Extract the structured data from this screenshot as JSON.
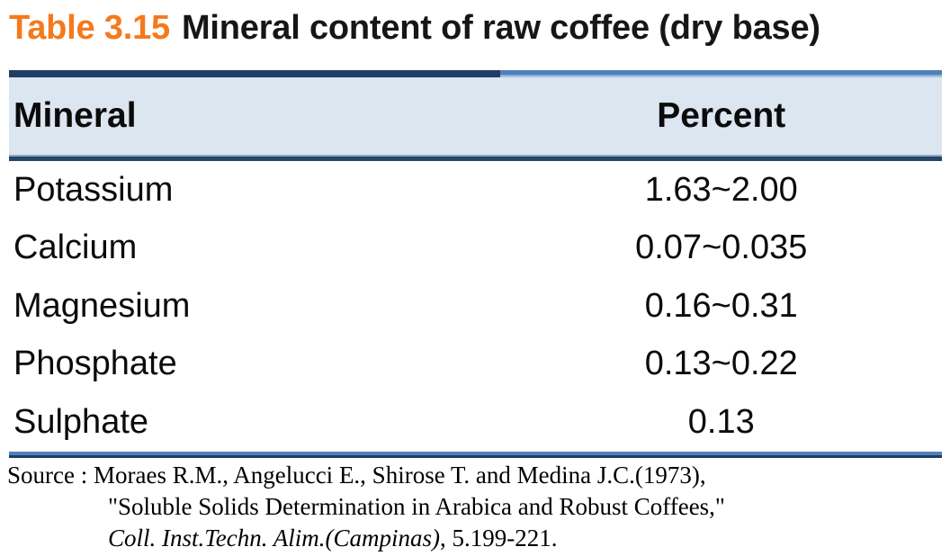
{
  "title": {
    "label": "Table 3.15",
    "text": "Mineral content of raw coffee (dry base)"
  },
  "table": {
    "columns": [
      "Mineral",
      "Percent"
    ],
    "rows": [
      {
        "mineral": "Potassium",
        "percent": "1.63~2.00"
      },
      {
        "mineral": "Calcium",
        "percent": "0.07~0.035"
      },
      {
        "mineral": "Magnesium",
        "percent": "0.16~0.31"
      },
      {
        "mineral": "Phosphate",
        "percent": "0.13~0.22"
      },
      {
        "mineral": "Sulphate",
        "percent": "0.13"
      }
    ]
  },
  "source": {
    "prefix": "Source : ",
    "citation": "Moraes R.M., Angelucci E., Shirose T. and Medina J.C.(1973),",
    "article_title": "\"Soluble Solids Determination in Arabica and Robust Coffees,\"",
    "journal_italic": "Coll. Inst.Techn. Alim.(Campinas)",
    "journal_rest": ", 5.199-221."
  },
  "colors": {
    "accent_orange": "#F5791D",
    "dark_navy": "#1F3C66",
    "medium_blue": "#4F81BD",
    "light_blue": "#A9C0DC",
    "header_background": "#DCE6F1",
    "text": "#111111"
  }
}
